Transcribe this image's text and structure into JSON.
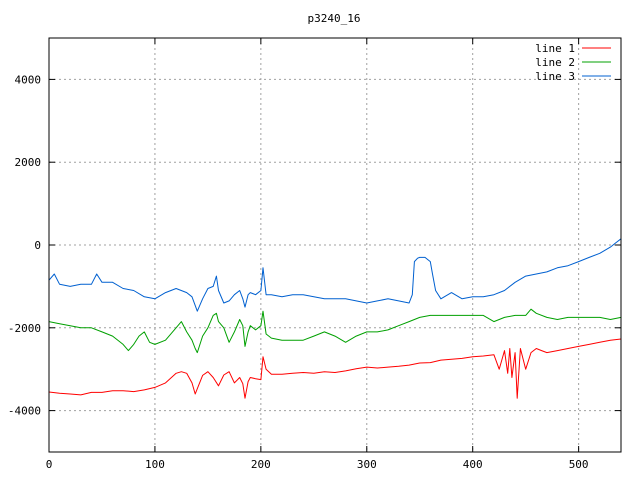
{
  "chart_data": {
    "type": "line",
    "title": "p3240_16",
    "xlabel": "",
    "ylabel": "",
    "xlim": [
      0,
      540
    ],
    "ylim": [
      -5000,
      5000
    ],
    "xticks": [
      0,
      100,
      200,
      300,
      400,
      500
    ],
    "yticks": [
      -4000,
      -2000,
      0,
      2000,
      4000
    ],
    "xtick_labels": [
      "0",
      "100",
      "200",
      "300",
      "400",
      "500"
    ],
    "ytick_labels": [
      "-4000",
      "-2000",
      "0",
      "2000",
      "4000"
    ],
    "grid": true,
    "legend_position": "top-right",
    "series": [
      {
        "name": "line 1",
        "color": "#ff0000",
        "x": [
          0,
          10,
          20,
          30,
          40,
          50,
          60,
          70,
          80,
          90,
          100,
          110,
          120,
          125,
          130,
          135,
          138,
          140,
          145,
          150,
          155,
          160,
          165,
          170,
          175,
          180,
          183,
          185,
          188,
          190,
          195,
          200,
          202,
          205,
          210,
          220,
          230,
          240,
          250,
          260,
          270,
          280,
          290,
          300,
          310,
          320,
          330,
          340,
          350,
          360,
          370,
          380,
          390,
          400,
          410,
          420,
          425,
          430,
          433,
          435,
          437,
          440,
          442,
          445,
          450,
          455,
          460,
          465,
          470,
          480,
          490,
          500,
          510,
          520,
          530,
          540
        ],
        "y": [
          -3550,
          -3580,
          -3600,
          -3620,
          -3560,
          -3560,
          -3520,
          -3520,
          -3540,
          -3500,
          -3440,
          -3330,
          -3100,
          -3060,
          -3100,
          -3330,
          -3600,
          -3470,
          -3150,
          -3060,
          -3200,
          -3400,
          -3140,
          -3060,
          -3330,
          -3200,
          -3350,
          -3700,
          -3300,
          -3200,
          -3230,
          -3250,
          -2700,
          -3000,
          -3120,
          -3120,
          -3100,
          -3080,
          -3100,
          -3060,
          -3080,
          -3040,
          -2990,
          -2950,
          -2970,
          -2950,
          -2930,
          -2900,
          -2850,
          -2840,
          -2780,
          -2760,
          -2740,
          -2700,
          -2680,
          -2650,
          -3000,
          -2550,
          -3100,
          -2500,
          -3200,
          -2600,
          -3700,
          -2500,
          -3000,
          -2600,
          -2500,
          -2550,
          -2600,
          -2550,
          -2500,
          -2450,
          -2400,
          -2350,
          -2300,
          -2270
        ]
      },
      {
        "name": "line 2",
        "color": "#00a000",
        "x": [
          0,
          10,
          20,
          30,
          40,
          50,
          60,
          70,
          75,
          80,
          85,
          90,
          95,
          100,
          110,
          120,
          125,
          130,
          135,
          138,
          140,
          145,
          150,
          155,
          158,
          160,
          165,
          170,
          175,
          180,
          183,
          185,
          188,
          190,
          195,
          200,
          202,
          205,
          210,
          220,
          230,
          240,
          250,
          260,
          270,
          280,
          290,
          300,
          310,
          320,
          330,
          340,
          350,
          360,
          370,
          380,
          390,
          400,
          410,
          420,
          430,
          440,
          450,
          455,
          460,
          470,
          480,
          490,
          500,
          510,
          520,
          530,
          540
        ],
        "y": [
          -1850,
          -1900,
          -1950,
          -2000,
          -2000,
          -2100,
          -2200,
          -2400,
          -2550,
          -2400,
          -2200,
          -2100,
          -2350,
          -2400,
          -2300,
          -2000,
          -1850,
          -2100,
          -2300,
          -2500,
          -2600,
          -2200,
          -2000,
          -1700,
          -1650,
          -1850,
          -2000,
          -2350,
          -2100,
          -1800,
          -1950,
          -2450,
          -2100,
          -1950,
          -2050,
          -1950,
          -1600,
          -2150,
          -2250,
          -2300,
          -2300,
          -2300,
          -2200,
          -2100,
          -2200,
          -2350,
          -2200,
          -2100,
          -2100,
          -2050,
          -1950,
          -1850,
          -1750,
          -1700,
          -1700,
          -1700,
          -1700,
          -1700,
          -1700,
          -1850,
          -1750,
          -1700,
          -1700,
          -1550,
          -1650,
          -1750,
          -1800,
          -1750,
          -1750,
          -1750,
          -1750,
          -1800,
          -1750
        ]
      },
      {
        "name": "line 3",
        "color": "#0060d0",
        "x": [
          0,
          5,
          10,
          20,
          30,
          40,
          45,
          50,
          60,
          70,
          80,
          90,
          100,
          110,
          120,
          130,
          135,
          140,
          145,
          150,
          155,
          158,
          160,
          165,
          170,
          175,
          180,
          183,
          185,
          188,
          190,
          195,
          200,
          202,
          205,
          210,
          220,
          230,
          240,
          250,
          260,
          270,
          280,
          290,
          300,
          310,
          320,
          330,
          340,
          343,
          345,
          348,
          350,
          355,
          360,
          362,
          365,
          370,
          380,
          390,
          400,
          410,
          420,
          430,
          440,
          450,
          460,
          470,
          480,
          490,
          500,
          510,
          520,
          530,
          535,
          540
        ],
        "y": [
          -850,
          -700,
          -950,
          -1000,
          -950,
          -950,
          -700,
          -900,
          -900,
          -1050,
          -1100,
          -1250,
          -1300,
          -1150,
          -1050,
          -1150,
          -1250,
          -1600,
          -1300,
          -1050,
          -1000,
          -750,
          -1100,
          -1400,
          -1350,
          -1200,
          -1100,
          -1300,
          -1500,
          -1200,
          -1150,
          -1200,
          -1100,
          -550,
          -1200,
          -1200,
          -1250,
          -1200,
          -1200,
          -1250,
          -1300,
          -1300,
          -1300,
          -1350,
          -1400,
          -1350,
          -1300,
          -1350,
          -1400,
          -1200,
          -400,
          -320,
          -300,
          -300,
          -400,
          -700,
          -1100,
          -1300,
          -1150,
          -1300,
          -1250,
          -1250,
          -1200,
          -1100,
          -900,
          -750,
          -700,
          -650,
          -550,
          -500,
          -400,
          -300,
          -200,
          -50,
          50,
          150
        ]
      }
    ]
  }
}
